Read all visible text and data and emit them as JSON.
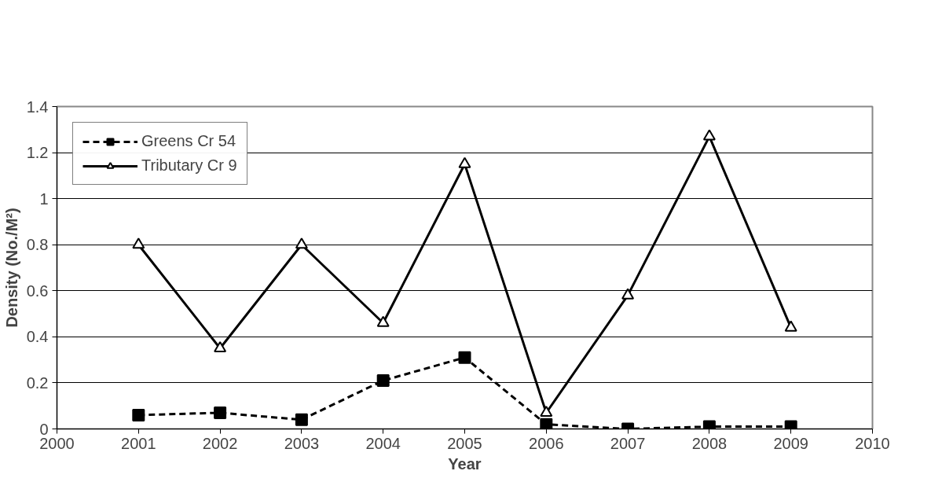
{
  "chart_data": {
    "type": "line",
    "xlabel": "Year",
    "ylabel": "Density (No./M²)",
    "x": [
      2001,
      2002,
      2003,
      2004,
      2005,
      2006,
      2007,
      2008,
      2009
    ],
    "series": [
      {
        "name": "Greens Cr 54",
        "color": "#000000",
        "marker": "square",
        "line_style": "dashed",
        "values": [
          0.06,
          0.07,
          0.04,
          0.21,
          0.31,
          0.02,
          0.0,
          0.01,
          0.01
        ]
      },
      {
        "name": "Tributary Cr 9",
        "color": "#000000",
        "marker": "triangle",
        "line_style": "solid",
        "values": [
          0.8,
          0.35,
          0.8,
          0.46,
          1.15,
          0.07,
          0.58,
          1.27,
          0.44
        ]
      }
    ],
    "xlim": [
      2000,
      2010
    ],
    "xticks": [
      2000,
      2001,
      2002,
      2003,
      2004,
      2005,
      2006,
      2007,
      2008,
      2009,
      2010
    ],
    "ylim": [
      0,
      1.4
    ],
    "yticks": [
      0,
      0.2,
      0.4,
      0.6,
      0.8,
      1,
      1.2,
      1.4
    ],
    "grid": "y",
    "legend": "top left"
  }
}
